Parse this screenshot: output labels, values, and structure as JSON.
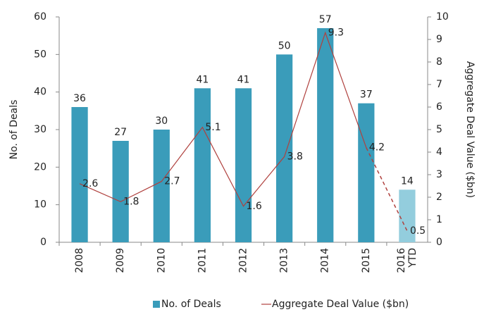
{
  "chart_data": {
    "type": "bar",
    "categories": [
      "2008",
      "2009",
      "2010",
      "2011",
      "2012",
      "2013",
      "2014",
      "2015",
      "2016 YTD"
    ],
    "series": [
      {
        "name": "No. of Deals",
        "type": "bar",
        "color": "#3a9cba",
        "point_colors": [
          "#3a9cba",
          "#3a9cba",
          "#3a9cba",
          "#3a9cba",
          "#3a9cba",
          "#3a9cba",
          "#3a9cba",
          "#3a9cba",
          "#93cddd"
        ],
        "values": [
          36,
          27,
          30,
          41,
          41,
          50,
          57,
          37,
          14
        ]
      },
      {
        "name": "Aggregate Deal Value ($bn)",
        "type": "line",
        "axis": "y2",
        "color": "#b0413e",
        "last_segment_style": "dashed",
        "values": [
          2.6,
          1.8,
          2.7,
          5.1,
          1.6,
          3.8,
          9.3,
          4.2,
          0.5
        ]
      }
    ],
    "y_label": "No. of Deals",
    "y2_label": "Aggregate Deal Value ($bn)",
    "ylim": [
      0,
      60
    ],
    "yticks": [
      0,
      10,
      20,
      30,
      40,
      50,
      60
    ],
    "y2lim": [
      0,
      10
    ],
    "y2ticks": [
      0,
      1,
      2,
      3,
      4,
      5,
      6,
      7,
      8,
      9,
      10
    ],
    "legend": "bottom"
  }
}
